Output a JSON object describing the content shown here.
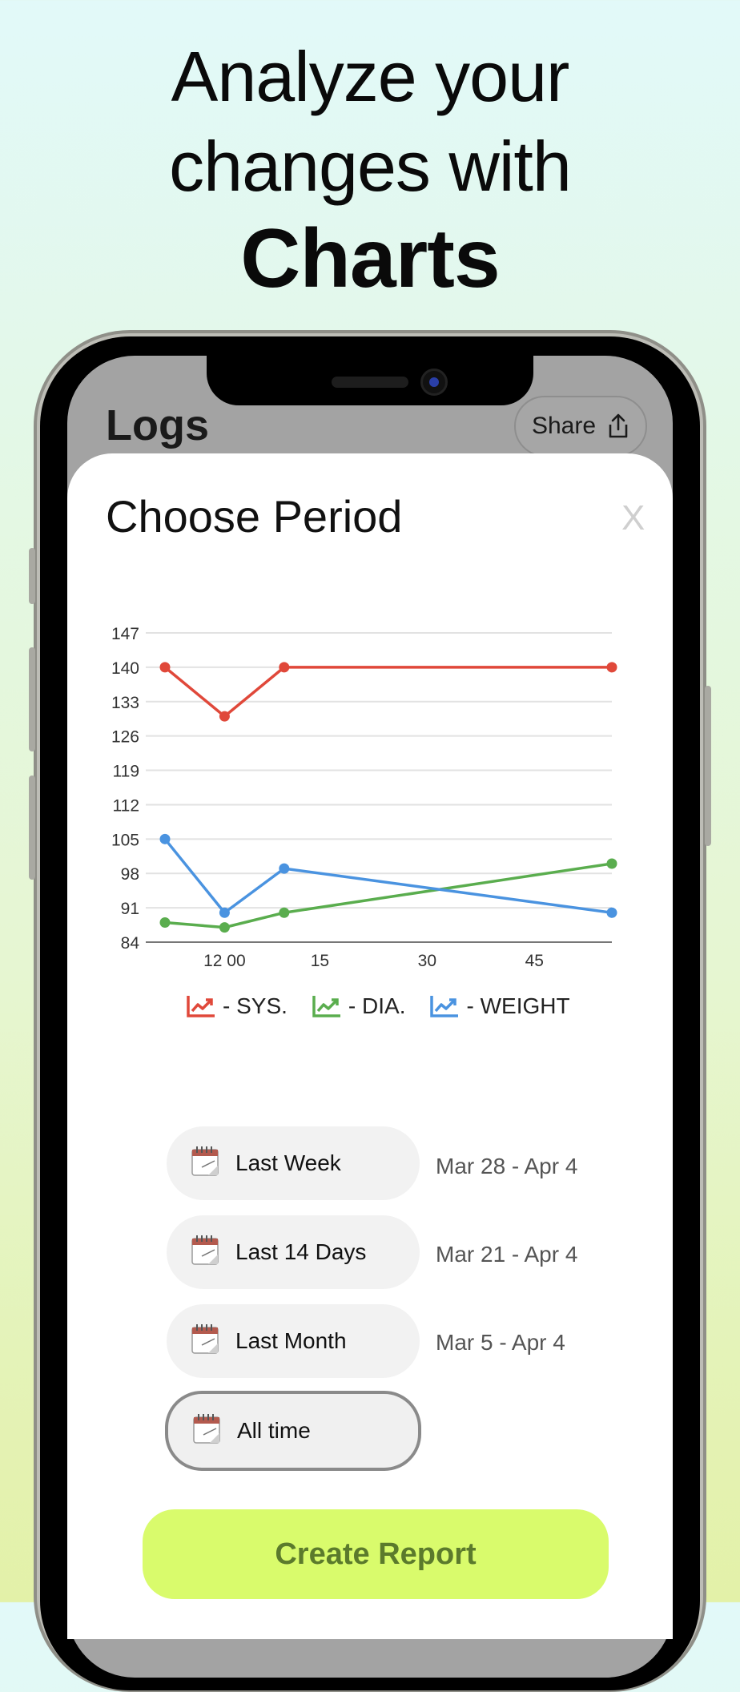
{
  "headline": {
    "line1": "Analyze your",
    "line2": "changes with",
    "line3": "Charts"
  },
  "app": {
    "title": "Logs",
    "share_label": "Share"
  },
  "sheet": {
    "title": "Choose Period",
    "close_label": "X"
  },
  "colors": {
    "sys": "#e0483a",
    "dia": "#5aad4e",
    "weight": "#4a93e0",
    "accent": "#d9fb6c"
  },
  "chart_data": {
    "type": "line",
    "x_tick_labels": [
      "12 00",
      "15",
      "30",
      "45"
    ],
    "y_ticks": [
      84,
      91,
      98,
      105,
      112,
      119,
      126,
      133,
      140,
      147
    ],
    "ylim": [
      84,
      147
    ],
    "grid": true,
    "legend": "bottom-center",
    "series": [
      {
        "name": "- SYS.",
        "color": "#e0483a",
        "points": [
          [
            0,
            140
          ],
          [
            1,
            130
          ],
          [
            2,
            140
          ],
          [
            7.5,
            140
          ]
        ]
      },
      {
        "name": "- DIA.",
        "color": "#5aad4e",
        "points": [
          [
            0,
            88
          ],
          [
            1,
            87
          ],
          [
            2,
            90
          ],
          [
            7.5,
            100
          ]
        ]
      },
      {
        "name": "- WEIGHT",
        "color": "#4a93e0",
        "points": [
          [
            0,
            105
          ],
          [
            1,
            90
          ],
          [
            2,
            99
          ],
          [
            7.5,
            90
          ]
        ]
      }
    ]
  },
  "periods": [
    {
      "label": "Last Week",
      "range": "Mar 28 - Apr 4"
    },
    {
      "label": "Last 14 Days",
      "range": "Mar 21 - Apr 4"
    },
    {
      "label": "Last Month",
      "range": "Mar 5 - Apr 4"
    },
    {
      "label": "All time",
      "range": ""
    }
  ],
  "create_button": "Create Report"
}
